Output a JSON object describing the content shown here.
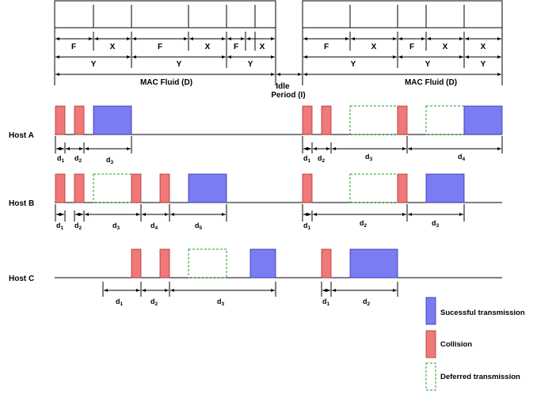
{
  "colors": {
    "success_fill": "#7b7bf2",
    "success_stroke": "#3030b0",
    "collision_fill": "#f07878",
    "collision_stroke": "#b03030",
    "deferred_stroke": "#22a022"
  },
  "top": {
    "left_labels": {
      "f1": "F",
      "x1": "X",
      "f2": "F",
      "x2": "X",
      "f3": "F",
      "x3": "X",
      "y1": "Y",
      "y2": "Y",
      "y3": "Y",
      "mac": "MAC Fluid (D)"
    },
    "idle_line1": "Idle",
    "idle_line2": "Period (I)",
    "right_labels": {
      "f1": "F",
      "x1": "X",
      "f2": "F",
      "x2": "X",
      "x3": "X",
      "y1": "Y",
      "y2": "Y",
      "y3": "Y",
      "mac": "MAC Fluid (D)"
    }
  },
  "hosts": [
    {
      "label": "Host A",
      "intervals": [
        {
          "main": "d",
          "sub": "1"
        },
        {
          "main": "d",
          "sub": "2"
        },
        {
          "main": "d",
          "sub": "3"
        },
        {
          "main": "d",
          "sub": "1"
        },
        {
          "main": "d",
          "sub": "2"
        },
        {
          "main": "d",
          "sub": "3"
        },
        {
          "main": "d",
          "sub": "4"
        }
      ]
    },
    {
      "label": "Host B",
      "intervals": [
        {
          "main": "d",
          "sub": "1"
        },
        {
          "main": "d",
          "sub": "2"
        },
        {
          "main": "d",
          "sub": "3"
        },
        {
          "main": "d",
          "sub": "4"
        },
        {
          "main": "d",
          "sub": "5"
        },
        {
          "main": "d",
          "sub": "1"
        },
        {
          "main": "d",
          "sub": "2"
        },
        {
          "main": "d",
          "sub": "3"
        }
      ]
    },
    {
      "label": "Host C",
      "intervals": [
        {
          "main": "d",
          "sub": "1"
        },
        {
          "main": "d",
          "sub": "2"
        },
        {
          "main": "d",
          "sub": "3"
        },
        {
          "main": "d",
          "sub": "1"
        },
        {
          "main": "d",
          "sub": "2"
        }
      ]
    }
  ],
  "legend": {
    "success": "Sucessful transmission",
    "collision": "Collision",
    "deferred": "Deferred transmission"
  }
}
